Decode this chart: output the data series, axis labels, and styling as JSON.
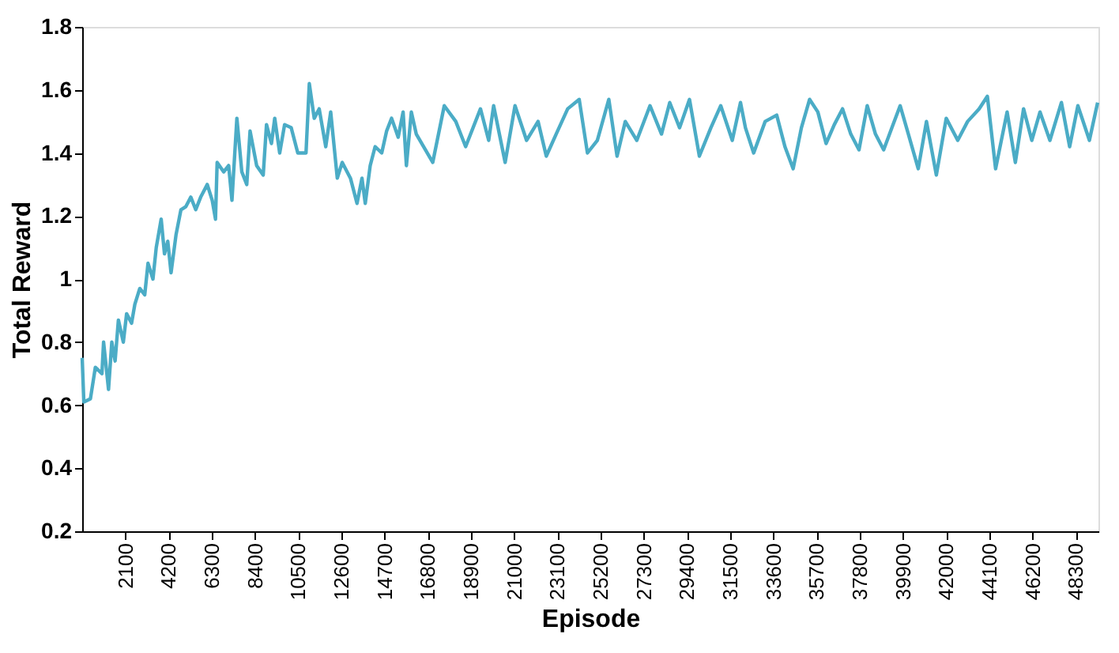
{
  "chart_data": {
    "type": "line",
    "xlabel": "Episode",
    "ylabel": "Total Reward",
    "x": [
      0,
      80,
      400,
      640,
      960,
      1040,
      1280,
      1440,
      1600,
      1760,
      2000,
      2160,
      2400,
      2560,
      2800,
      3040,
      3200,
      3440,
      3600,
      3840,
      4000,
      4160,
      4320,
      4560,
      4800,
      5040,
      5280,
      5520,
      5760,
      6080,
      6320,
      6480,
      6560,
      6880,
      7120,
      7280,
      7520,
      7760,
      8000,
      8160,
      8480,
      8800,
      8960,
      9200,
      9360,
      9600,
      9840,
      10160,
      10480,
      10880,
      11040,
      11280,
      11520,
      11840,
      12080,
      12400,
      12640,
      13040,
      13360,
      13600,
      13760,
      14000,
      14240,
      14560,
      14800,
      15040,
      15360,
      15600,
      15760,
      16000,
      16240,
      17040,
      17600,
      18160,
      18640,
      19360,
      19760,
      20000,
      20560,
      21040,
      21600,
      22160,
      22560,
      23040,
      23600,
      24160,
      24560,
      25040,
      25600,
      26000,
      26400,
      26960,
      27600,
      28160,
      28560,
      29040,
      29520,
      30000,
      30560,
      31040,
      31600,
      32000,
      32240,
      32640,
      33200,
      33760,
      34160,
      34560,
      34960,
      35360,
      35760,
      36160,
      36560,
      36960,
      37360,
      37760,
      38160,
      38560,
      38960,
      39360,
      39760,
      40160,
      40640,
      41040,
      41520,
      42000,
      42560,
      43040,
      43600,
      44000,
      44400,
      44960,
      45360,
      45760,
      46160,
      46560,
      47040,
      47600,
      48000,
      48400,
      48960,
      49360
    ],
    "series": [
      {
        "color": "#4bacc6",
        "values": [
          0.75,
          0.61,
          0.62,
          0.72,
          0.7,
          0.8,
          0.65,
          0.8,
          0.74,
          0.87,
          0.8,
          0.89,
          0.86,
          0.92,
          0.97,
          0.95,
          1.05,
          1.0,
          1.1,
          1.19,
          1.08,
          1.12,
          1.02,
          1.14,
          1.22,
          1.23,
          1.26,
          1.22,
          1.26,
          1.3,
          1.25,
          1.19,
          1.37,
          1.34,
          1.36,
          1.25,
          1.51,
          1.34,
          1.3,
          1.47,
          1.36,
          1.33,
          1.49,
          1.43,
          1.51,
          1.4,
          1.49,
          1.48,
          1.4,
          1.4,
          1.62,
          1.51,
          1.54,
          1.42,
          1.53,
          1.32,
          1.37,
          1.32,
          1.24,
          1.32,
          1.24,
          1.36,
          1.42,
          1.4,
          1.47,
          1.51,
          1.45,
          1.53,
          1.36,
          1.53,
          1.46,
          1.37,
          1.55,
          1.5,
          1.42,
          1.54,
          1.44,
          1.55,
          1.37,
          1.55,
          1.44,
          1.5,
          1.39,
          1.46,
          1.54,
          1.57,
          1.4,
          1.44,
          1.57,
          1.39,
          1.5,
          1.44,
          1.55,
          1.46,
          1.56,
          1.48,
          1.57,
          1.39,
          1.48,
          1.55,
          1.44,
          1.56,
          1.48,
          1.4,
          1.5,
          1.52,
          1.42,
          1.35,
          1.48,
          1.57,
          1.53,
          1.43,
          1.49,
          1.54,
          1.46,
          1.41,
          1.55,
          1.46,
          1.41,
          1.48,
          1.55,
          1.46,
          1.35,
          1.5,
          1.33,
          1.51,
          1.44,
          1.5,
          1.54,
          1.58,
          1.35,
          1.53,
          1.37,
          1.54,
          1.44,
          1.53,
          1.44,
          1.56,
          1.42,
          1.55,
          1.44,
          1.56
        ]
      }
    ],
    "xlim": [
      0,
      49400
    ],
    "xticks": [
      2100,
      4200,
      6300,
      8400,
      10500,
      12600,
      14700,
      16800,
      18900,
      21000,
      23100,
      25200,
      27300,
      29400,
      31500,
      33600,
      35700,
      37800,
      39900,
      42000,
      44100,
      46200,
      48300
    ],
    "ylim": [
      0.2,
      1.8
    ],
    "yticks": [
      0.2,
      0.4,
      0.6,
      0.8,
      1,
      1.2,
      1.4,
      1.6,
      1.8
    ],
    "grid": false,
    "marker": "none",
    "line_style": "solid"
  }
}
